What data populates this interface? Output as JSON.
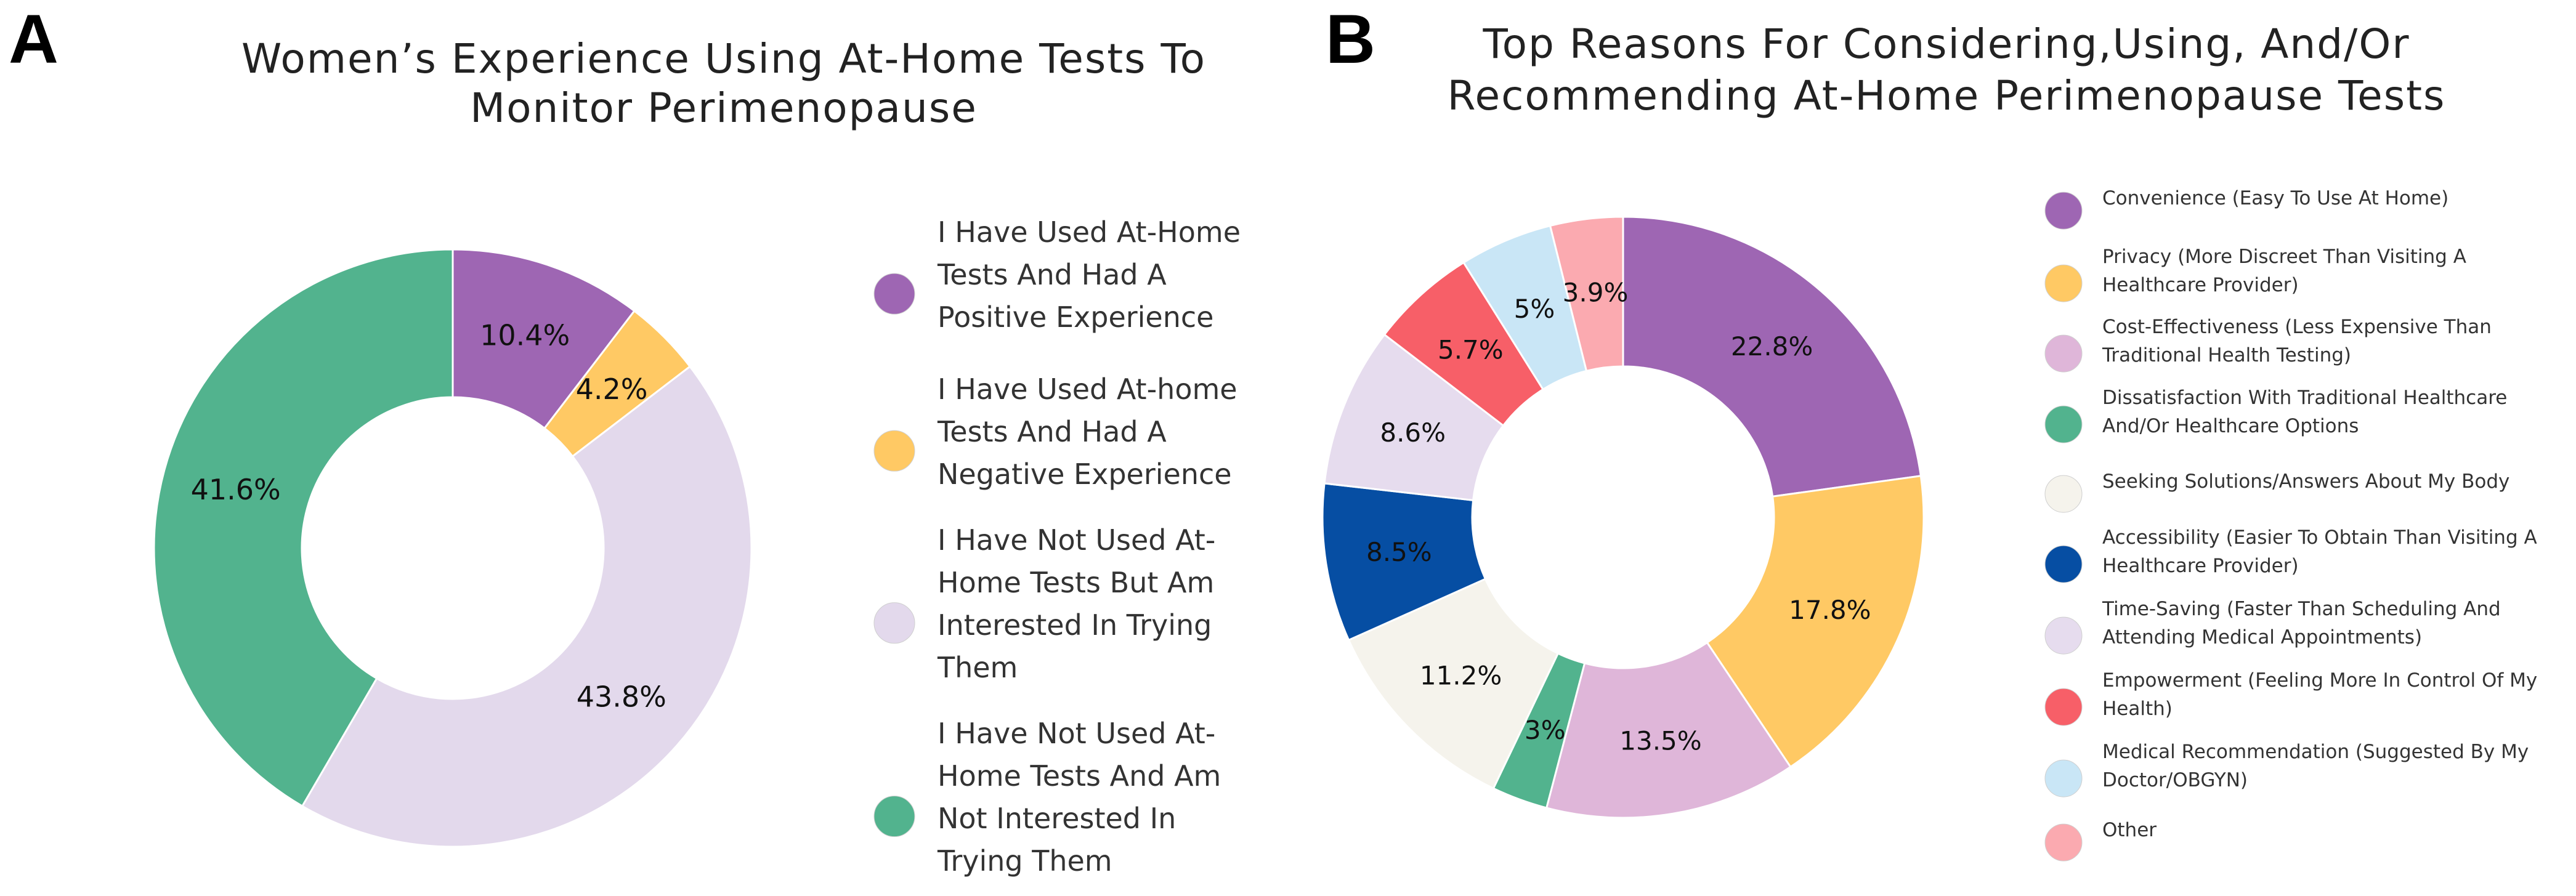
{
  "chart_data": [
    {
      "panel": "A",
      "type": "pie",
      "title_lines": [
        "Women’s Experience Using At-Home Tests To",
        "Monitor Perimenopause"
      ],
      "slices": [
        {
          "value": 10.4,
          "label": "10.4%",
          "color": "#9e66b3",
          "legend_lines": [
            "I Have Used At-Home",
            "Tests And Had A",
            "Positive Experience"
          ]
        },
        {
          "value": 4.2,
          "label": "4.2%",
          "color": "#ffc964",
          "legend_lines": [
            "I Have Used At-home",
            "Tests And Had A",
            "Negative Experience"
          ]
        },
        {
          "value": 43.8,
          "label": "43.8%",
          "color": "#e3d9ec",
          "legend_lines": [
            "I Have Not Used At-",
            "Home Tests But Am",
            "Interested In Trying",
            "Them"
          ]
        },
        {
          "value": 41.6,
          "label": "41.6%",
          "color": "#52b38e",
          "legend_lines": [
            "I Have Not Used At-",
            "Home Tests And Am",
            "Not Interested In",
            "Trying Them"
          ]
        }
      ],
      "legend_position": "right"
    },
    {
      "panel": "B",
      "type": "pie",
      "title_lines": [
        "Top Reasons For Considering,Using, And/Or",
        "Recommending At-Home Perimenopause Tests"
      ],
      "slices": [
        {
          "value": 22.8,
          "label": "22.8%",
          "color": "#9e66b3",
          "legend_lines": [
            "Convenience (Easy To Use At Home)"
          ]
        },
        {
          "value": 17.8,
          "label": "17.8%",
          "color": "#ffc964",
          "legend_lines": [
            "Privacy (More Discreet Than Visiting A",
            "Healthcare Provider)"
          ]
        },
        {
          "value": 13.5,
          "label": "13.5%",
          "color": "#dfb6d9",
          "legend_lines": [
            "Cost-Effectiveness (Less Expensive Than",
            "Traditional Health Testing)"
          ]
        },
        {
          "value": 3,
          "label": "3%",
          "color": "#52b38e",
          "legend_lines": [
            "Dissatisfaction With Traditional Healthcare",
            "And/Or Healthcare Options"
          ]
        },
        {
          "value": 11.2,
          "label": "11.2%",
          "color": "#f5f3ec",
          "legend_lines": [
            "Seeking Solutions/Answers About My Body"
          ]
        },
        {
          "value": 8.5,
          "label": "8.5%",
          "color": "#064ea3",
          "legend_lines": [
            "Accessibility (Easier To Obtain Than Visiting A",
            "Healthcare Provider)"
          ]
        },
        {
          "value": 8.6,
          "label": "8.6%",
          "color": "#e6dcee",
          "legend_lines": [
            "Time-Saving (Faster Than Scheduling And",
            "Attending Medical Appointments)"
          ]
        },
        {
          "value": 5.7,
          "label": "5.7%",
          "color": "#f75f68",
          "legend_lines": [
            "Empowerment (Feeling More In Control Of My",
            "Health)"
          ]
        },
        {
          "value": 5,
          "label": "5%",
          "color": "#c9e6f6",
          "legend_lines": [
            "Medical Recommendation (Suggested By My",
            "Doctor/OBGYN)"
          ]
        },
        {
          "value": 3.9,
          "label": "3.9%",
          "color": "#fbaab0",
          "legend_lines": [
            "Other"
          ]
        }
      ],
      "legend_position": "right"
    }
  ]
}
